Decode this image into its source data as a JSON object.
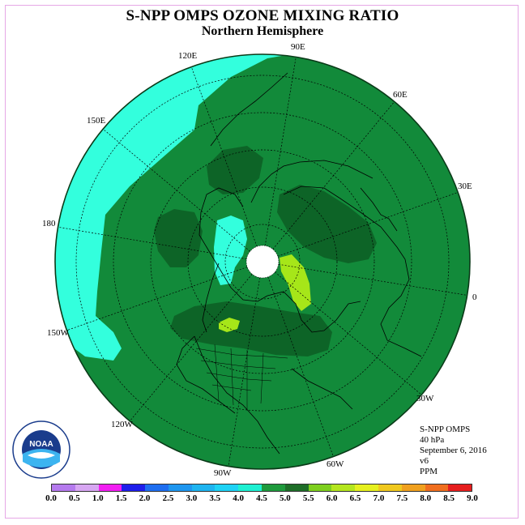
{
  "title": "S-NPP OMPS OZONE MIXING RATIO",
  "subtitle": "Northern Hemisphere",
  "longitude_labels": [
    "90E",
    "60E",
    "30E",
    "0",
    "30W",
    "60W",
    "90W",
    "120W",
    "150W",
    "180",
    "150E",
    "120E"
  ],
  "info": {
    "instrument": "S-NPP OMPS",
    "level": "40 hPa",
    "date": "September 6, 2016",
    "version": "v6",
    "units": "PPM"
  },
  "colorbar": {
    "ticks": [
      "0.0",
      "0.5",
      "1.0",
      "1.5",
      "2.0",
      "2.5",
      "3.0",
      "3.5",
      "4.0",
      "4.5",
      "5.0",
      "5.5",
      "6.0",
      "6.5",
      "7.0",
      "7.5",
      "8.0",
      "8.5",
      "9.0"
    ],
    "colors": [
      "#b57aee",
      "#d7a6f2",
      "#f21ef2",
      "#1e1eeb",
      "#1e6ef0",
      "#1e96ef",
      "#1eb4f0",
      "#1ed2f5",
      "#1ef0d2",
      "#1e9a3c",
      "#1e6e28",
      "#7ecf1e",
      "#b4e61e",
      "#e6f01e",
      "#f0c81e",
      "#f0a01e",
      "#f06e1e",
      "#e61e1e",
      "#8c5a3c"
    ]
  },
  "map_colors": {
    "low_cyan": "#33ffdd",
    "main_green": "#128a3a",
    "dark_green": "#0d6427",
    "lime": "#a6e619"
  },
  "logo_text": "NOAA"
}
